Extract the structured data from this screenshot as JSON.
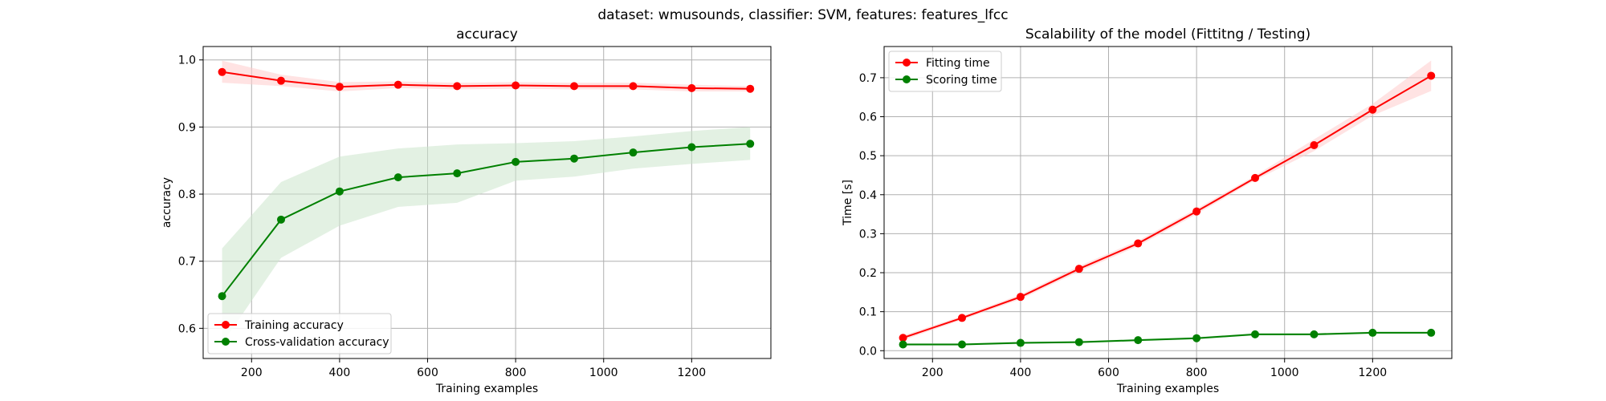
{
  "figure": {
    "suptitle": "dataset: wmusounds, classifier: SVM, features: features_lfcc"
  },
  "chart_data": [
    {
      "type": "line",
      "title": "accuracy",
      "xlabel": "Training examples",
      "ylabel": "accuracy",
      "xlim": [
        90,
        1380
      ],
      "ylim": [
        0.555,
        1.02
      ],
      "xticks": [
        200,
        400,
        600,
        800,
        1000,
        1200
      ],
      "yticks": [
        0.6,
        0.7,
        0.8,
        0.9,
        1.0
      ],
      "xtick_labels": [
        "200",
        "400",
        "600",
        "800",
        "1000",
        "1200"
      ],
      "ytick_labels": [
        "0.6",
        "0.7",
        "0.8",
        "0.9",
        "1.0"
      ],
      "grid": true,
      "legend_position": "lower-left",
      "x": [
        133,
        267,
        400,
        533,
        667,
        800,
        933,
        1067,
        1200,
        1333
      ],
      "series": [
        {
          "name": "Training accuracy",
          "color": "#ff0000",
          "band_color": "#ffcccc",
          "values": [
            0.982,
            0.969,
            0.96,
            0.963,
            0.961,
            0.962,
            0.961,
            0.961,
            0.958,
            0.957
          ],
          "lower": [
            0.966,
            0.961,
            0.953,
            0.958,
            0.956,
            0.957,
            0.956,
            0.956,
            0.953,
            0.953
          ],
          "upper": [
            0.999,
            0.978,
            0.967,
            0.968,
            0.966,
            0.967,
            0.966,
            0.966,
            0.963,
            0.961
          ]
        },
        {
          "name": "Cross-validation accuracy",
          "color": "#008000",
          "band_color": "#cce6cc",
          "values": [
            0.648,
            0.762,
            0.804,
            0.825,
            0.831,
            0.848,
            0.853,
            0.862,
            0.87,
            0.875
          ],
          "lower": [
            0.577,
            0.705,
            0.753,
            0.781,
            0.787,
            0.82,
            0.826,
            0.838,
            0.845,
            0.851
          ],
          "upper": [
            0.719,
            0.818,
            0.856,
            0.868,
            0.874,
            0.876,
            0.879,
            0.886,
            0.894,
            0.9
          ]
        }
      ]
    },
    {
      "type": "line",
      "title": "Scalability of the model (Fittitng / Testing)",
      "xlabel": "Training examples",
      "ylabel": "Time [s]",
      "xlim": [
        90,
        1380
      ],
      "ylim": [
        -0.02,
        0.78
      ],
      "xticks": [
        200,
        400,
        600,
        800,
        1000,
        1200
      ],
      "yticks": [
        0.0,
        0.1,
        0.2,
        0.3,
        0.4,
        0.5,
        0.6,
        0.7
      ],
      "xtick_labels": [
        "200",
        "400",
        "600",
        "800",
        "1000",
        "1200"
      ],
      "ytick_labels": [
        "0.0",
        "0.1",
        "0.2",
        "0.3",
        "0.4",
        "0.5",
        "0.6",
        "0.7"
      ],
      "grid": true,
      "legend_position": "upper-left",
      "x": [
        133,
        267,
        400,
        533,
        667,
        800,
        933,
        1067,
        1200,
        1333
      ],
      "series": [
        {
          "name": "Fitting time",
          "color": "#ff0000",
          "band_color": "#ffcccc",
          "values": [
            0.033,
            0.084,
            0.138,
            0.21,
            0.275,
            0.357,
            0.443,
            0.527,
            0.618,
            0.705
          ],
          "lower": [
            0.027,
            0.079,
            0.132,
            0.203,
            0.268,
            0.35,
            0.437,
            0.512,
            0.603,
            0.666
          ],
          "upper": [
            0.039,
            0.089,
            0.144,
            0.217,
            0.282,
            0.364,
            0.449,
            0.542,
            0.633,
            0.744
          ]
        },
        {
          "name": "Scoring time",
          "color": "#008000",
          "band_color": "#cce6cc",
          "values": [
            0.016,
            0.016,
            0.02,
            0.022,
            0.027,
            0.032,
            0.042,
            0.042,
            0.046,
            0.046
          ],
          "lower": [
            0.013,
            0.013,
            0.017,
            0.019,
            0.024,
            0.029,
            0.039,
            0.039,
            0.043,
            0.043
          ],
          "upper": [
            0.019,
            0.019,
            0.023,
            0.025,
            0.03,
            0.035,
            0.045,
            0.045,
            0.049,
            0.049
          ]
        }
      ]
    }
  ]
}
